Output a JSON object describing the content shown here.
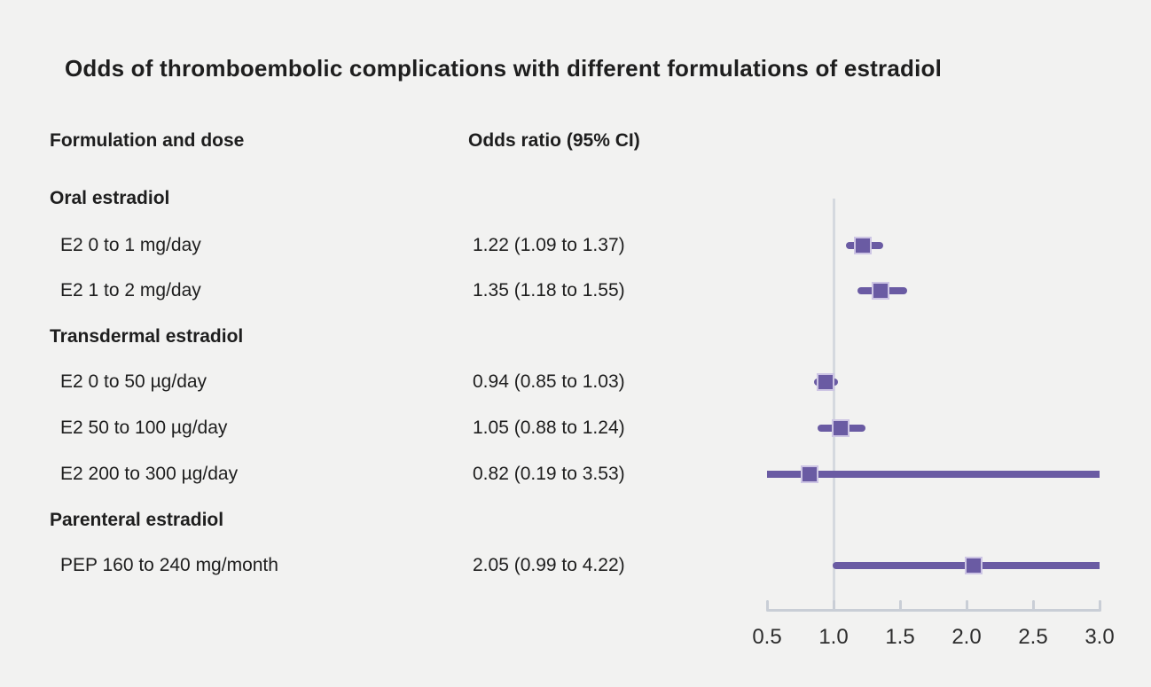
{
  "title": "Odds of thromboembolic complications with different formulations of estradiol",
  "columns": {
    "formulation": "Formulation and dose",
    "odds": "Odds ratio (95% CI)"
  },
  "chart_data": {
    "type": "forest",
    "title": "Odds of thromboembolic complications with different formulations of estradiol",
    "xlim": [
      0.5,
      3.0
    ],
    "x_ticks": [
      "0.5",
      "1.0",
      "1.5",
      "2.0",
      "2.5",
      "3.0"
    ],
    "x_tick_values": [
      0.5,
      1.0,
      1.5,
      2.0,
      2.5,
      3.0
    ],
    "reference_line": 1.0,
    "grid": false,
    "groups": [
      {
        "label": "Oral estradiol",
        "rows": [
          {
            "label": "E2 0 to 1 mg/day",
            "value_text": "1.22 (1.09 to 1.37)",
            "or": 1.22,
            "ci_low": 1.09,
            "ci_high": 1.37
          },
          {
            "label": "E2 1 to 2 mg/day",
            "value_text": "1.35 (1.18 to 1.55)",
            "or": 1.35,
            "ci_low": 1.18,
            "ci_high": 1.55
          }
        ]
      },
      {
        "label": "Transdermal estradiol",
        "rows": [
          {
            "label": "E2 0 to 50 µg/day",
            "value_text": "0.94 (0.85 to 1.03)",
            "or": 0.94,
            "ci_low": 0.85,
            "ci_high": 1.03
          },
          {
            "label": "E2 50 to 100 µg/day",
            "value_text": "1.05 (0.88 to 1.24)",
            "or": 1.05,
            "ci_low": 0.88,
            "ci_high": 1.24
          },
          {
            "label": "E2 200 to 300 µg/day",
            "value_text": "0.82 (0.19 to 3.53)",
            "or": 0.82,
            "ci_low": 0.19,
            "ci_high": 3.53
          }
        ]
      },
      {
        "label": "Parenteral estradiol",
        "rows": [
          {
            "label": "PEP 160 to 240 mg/month",
            "value_text": "2.05 (0.99 to 4.22)",
            "or": 2.05,
            "ci_low": 0.99,
            "ci_high": 4.22
          }
        ]
      }
    ],
    "colors": {
      "background": "#f2f2f1",
      "text": "#1e1e1e",
      "ci_line": "#6a5ba3",
      "marker_fill": "#6a5ba3",
      "marker_border": "#cdc5e4",
      "axis": "#c9ced6",
      "reference_line": "#d5d9df"
    }
  }
}
